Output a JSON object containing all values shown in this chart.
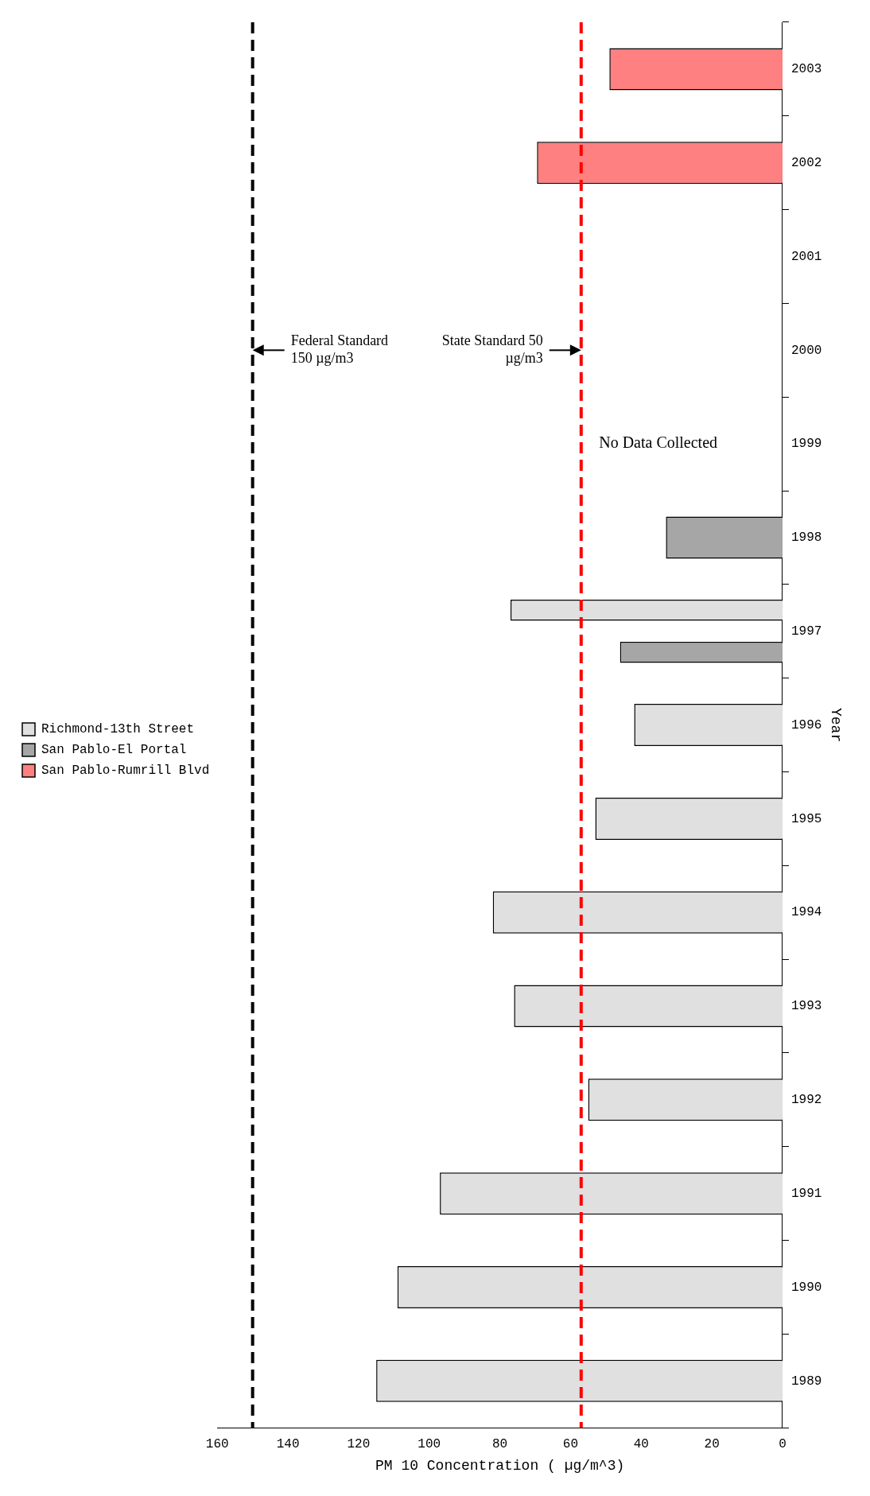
{
  "chart_data": {
    "type": "bar",
    "orientation": "horizontal",
    "xlabel": "PM 10 Concentration ( µg/m^3)",
    "ylabel": "Year",
    "categories": [
      "2003",
      "2002",
      "2001",
      "2000",
      "1999",
      "1998",
      "1997",
      "1996",
      "1995",
      "1994",
      "1993",
      "1992",
      "1991",
      "1990",
      "1989"
    ],
    "series": [
      {
        "name": "Richmond-13th Street",
        "color": "#e0e0e0",
        "values": [
          null,
          null,
          null,
          null,
          null,
          null,
          77,
          42,
          53,
          82,
          76,
          55,
          97,
          109,
          115
        ]
      },
      {
        "name": "San Pablo-El Portal",
        "color": "#a6a6a6",
        "values": [
          null,
          null,
          null,
          null,
          null,
          33,
          46,
          null,
          null,
          null,
          null,
          null,
          null,
          null,
          null
        ]
      },
      {
        "name": "San Pablo-Rumrill Blvd",
        "color": "#ff8080",
        "values": [
          49,
          69.5,
          null,
          null,
          null,
          null,
          null,
          null,
          null,
          null,
          null,
          null,
          null,
          null,
          null
        ]
      }
    ],
    "xlim": [
      160,
      0
    ],
    "xticks": [
      0,
      20,
      40,
      60,
      80,
      100,
      120,
      140,
      160
    ],
    "ref_lines": [
      {
        "axis": "x",
        "value": 150,
        "color": "#000000",
        "line_style": "dashed"
      },
      {
        "axis": "x",
        "value": 57,
        "color": "#ff0000",
        "line_style": "dashed"
      }
    ],
    "annotations": [
      {
        "text": "Federal Standard 150 µg/m3",
        "x": 150,
        "y": "2000"
      },
      {
        "text": "State Standard 50 µg/m3",
        "x": 57,
        "y": "2000"
      },
      "No Data Collected"
    ],
    "legend": "left",
    "grid": false
  }
}
